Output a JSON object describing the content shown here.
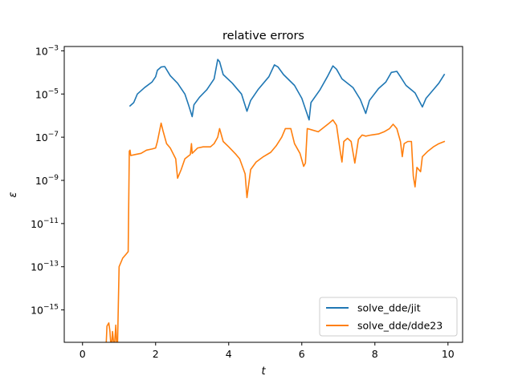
{
  "chart_data": {
    "type": "line",
    "title": "relative errors",
    "xlabel": "t",
    "ylabel": "ε",
    "xlim": [
      -0.5,
      10.4
    ],
    "ylim_exponent": [
      -16.5,
      -2.8
    ],
    "yscale": "log",
    "x_ticks": [
      0,
      2,
      4,
      6,
      8,
      10
    ],
    "x_tick_labels": [
      "0",
      "2",
      "4",
      "6",
      "8",
      "10"
    ],
    "y_ticks_exponent": [
      -15,
      -13,
      -11,
      -9,
      -7,
      -5,
      -3
    ],
    "y_tick_labels": [
      {
        "base": "10",
        "exp": "−15"
      },
      {
        "base": "10",
        "exp": "−13"
      },
      {
        "base": "10",
        "exp": "−11"
      },
      {
        "base": "10",
        "exp": "−9"
      },
      {
        "base": "10",
        "exp": "−7"
      },
      {
        "base": "10",
        "exp": "−5"
      },
      {
        "base": "10",
        "exp": "−3"
      }
    ],
    "grid": false,
    "legend_position": "lower-right",
    "series": [
      {
        "name": "solve_dde/jit",
        "color": "#1f77b4",
        "points": [
          [
            1.3,
            -5.55
          ],
          [
            1.4,
            -5.4
          ],
          [
            1.5,
            -5.0
          ],
          [
            1.7,
            -4.7
          ],
          [
            1.9,
            -4.45
          ],
          [
            2.0,
            -4.2
          ],
          [
            2.05,
            -3.9
          ],
          [
            2.15,
            -3.75
          ],
          [
            2.25,
            -3.73
          ],
          [
            2.4,
            -4.15
          ],
          [
            2.6,
            -4.5
          ],
          [
            2.8,
            -5.0
          ],
          [
            2.9,
            -5.5
          ],
          [
            3.0,
            -6.05
          ],
          [
            3.05,
            -5.5
          ],
          [
            3.2,
            -5.15
          ],
          [
            3.4,
            -4.8
          ],
          [
            3.6,
            -4.3
          ],
          [
            3.7,
            -3.4
          ],
          [
            3.75,
            -3.5
          ],
          [
            3.85,
            -4.1
          ],
          [
            4.1,
            -4.5
          ],
          [
            4.35,
            -5.0
          ],
          [
            4.5,
            -5.8
          ],
          [
            4.6,
            -5.3
          ],
          [
            4.8,
            -4.8
          ],
          [
            5.1,
            -4.2
          ],
          [
            5.25,
            -3.65
          ],
          [
            5.35,
            -3.75
          ],
          [
            5.5,
            -4.1
          ],
          [
            5.8,
            -4.6
          ],
          [
            6.0,
            -5.2
          ],
          [
            6.2,
            -6.2
          ],
          [
            6.25,
            -5.4
          ],
          [
            6.5,
            -4.8
          ],
          [
            6.7,
            -4.2
          ],
          [
            6.85,
            -3.7
          ],
          [
            6.95,
            -3.85
          ],
          [
            7.1,
            -4.3
          ],
          [
            7.4,
            -4.7
          ],
          [
            7.6,
            -5.25
          ],
          [
            7.75,
            -5.9
          ],
          [
            7.85,
            -5.3
          ],
          [
            8.1,
            -4.75
          ],
          [
            8.3,
            -4.45
          ],
          [
            8.45,
            -4.0
          ],
          [
            8.6,
            -3.95
          ],
          [
            8.7,
            -4.2
          ],
          [
            8.85,
            -4.6
          ],
          [
            9.1,
            -4.95
          ],
          [
            9.3,
            -5.6
          ],
          [
            9.4,
            -5.2
          ],
          [
            9.6,
            -4.8
          ],
          [
            9.75,
            -4.5
          ],
          [
            9.9,
            -4.1
          ]
        ]
      },
      {
        "name": "solve_dde/dde23",
        "color": "#ff7f0e",
        "points": [
          [
            0.65,
            -16.5
          ],
          [
            0.67,
            -15.75
          ],
          [
            0.72,
            -15.6
          ],
          [
            0.75,
            -16.0
          ],
          [
            0.77,
            -16.5
          ],
          [
            0.8,
            -16.5
          ],
          [
            0.82,
            -16.0
          ],
          [
            0.85,
            -16.5
          ],
          [
            0.88,
            -16.5
          ],
          [
            0.91,
            -15.7
          ],
          [
            0.93,
            -16.5
          ],
          [
            0.96,
            -16.5
          ],
          [
            1.0,
            -13.0
          ],
          [
            1.1,
            -12.6
          ],
          [
            1.2,
            -12.4
          ],
          [
            1.25,
            -12.3
          ],
          [
            1.28,
            -7.65
          ],
          [
            1.3,
            -7.6
          ],
          [
            1.32,
            -7.85
          ],
          [
            1.45,
            -7.8
          ],
          [
            1.6,
            -7.75
          ],
          [
            1.75,
            -7.6
          ],
          [
            1.9,
            -7.55
          ],
          [
            2.0,
            -7.5
          ],
          [
            2.05,
            -7.2
          ],
          [
            2.15,
            -6.35
          ],
          [
            2.2,
            -6.7
          ],
          [
            2.3,
            -7.3
          ],
          [
            2.4,
            -7.5
          ],
          [
            2.55,
            -8.0
          ],
          [
            2.6,
            -8.9
          ],
          [
            2.7,
            -8.5
          ],
          [
            2.8,
            -8.0
          ],
          [
            2.95,
            -7.8
          ],
          [
            2.98,
            -7.3
          ],
          [
            3.0,
            -7.75
          ],
          [
            3.15,
            -7.5
          ],
          [
            3.3,
            -7.45
          ],
          [
            3.5,
            -7.45
          ],
          [
            3.6,
            -7.3
          ],
          [
            3.7,
            -7.0
          ],
          [
            3.75,
            -6.6
          ],
          [
            3.85,
            -7.2
          ],
          [
            4.0,
            -7.45
          ],
          [
            4.2,
            -7.8
          ],
          [
            4.3,
            -8.0
          ],
          [
            4.45,
            -8.7
          ],
          [
            4.5,
            -9.8
          ],
          [
            4.6,
            -8.5
          ],
          [
            4.75,
            -8.15
          ],
          [
            4.95,
            -7.9
          ],
          [
            5.15,
            -7.7
          ],
          [
            5.3,
            -7.4
          ],
          [
            5.45,
            -7.0
          ],
          [
            5.55,
            -6.6
          ],
          [
            5.7,
            -6.6
          ],
          [
            5.8,
            -7.3
          ],
          [
            5.95,
            -7.75
          ],
          [
            6.05,
            -8.35
          ],
          [
            6.1,
            -8.2
          ],
          [
            6.15,
            -6.6
          ],
          [
            6.25,
            -6.65
          ],
          [
            6.45,
            -6.75
          ],
          [
            6.6,
            -6.55
          ],
          [
            6.75,
            -6.35
          ],
          [
            6.85,
            -6.2
          ],
          [
            6.95,
            -6.45
          ],
          [
            7.05,
            -7.65
          ],
          [
            7.1,
            -8.15
          ],
          [
            7.15,
            -7.2
          ],
          [
            7.25,
            -7.05
          ],
          [
            7.35,
            -7.2
          ],
          [
            7.45,
            -8.2
          ],
          [
            7.55,
            -7.1
          ],
          [
            7.65,
            -6.9
          ],
          [
            7.75,
            -6.95
          ],
          [
            7.9,
            -6.9
          ],
          [
            8.1,
            -6.85
          ],
          [
            8.25,
            -6.75
          ],
          [
            8.4,
            -6.6
          ],
          [
            8.5,
            -6.4
          ],
          [
            8.6,
            -6.6
          ],
          [
            8.7,
            -7.2
          ],
          [
            8.75,
            -7.9
          ],
          [
            8.8,
            -7.3
          ],
          [
            8.9,
            -7.2
          ],
          [
            9.0,
            -7.2
          ],
          [
            9.05,
            -8.8
          ],
          [
            9.1,
            -9.3
          ],
          [
            9.15,
            -8.4
          ],
          [
            9.25,
            -8.6
          ],
          [
            9.3,
            -7.9
          ],
          [
            9.45,
            -7.65
          ],
          [
            9.6,
            -7.45
          ],
          [
            9.75,
            -7.3
          ],
          [
            9.9,
            -7.2
          ]
        ]
      }
    ]
  }
}
